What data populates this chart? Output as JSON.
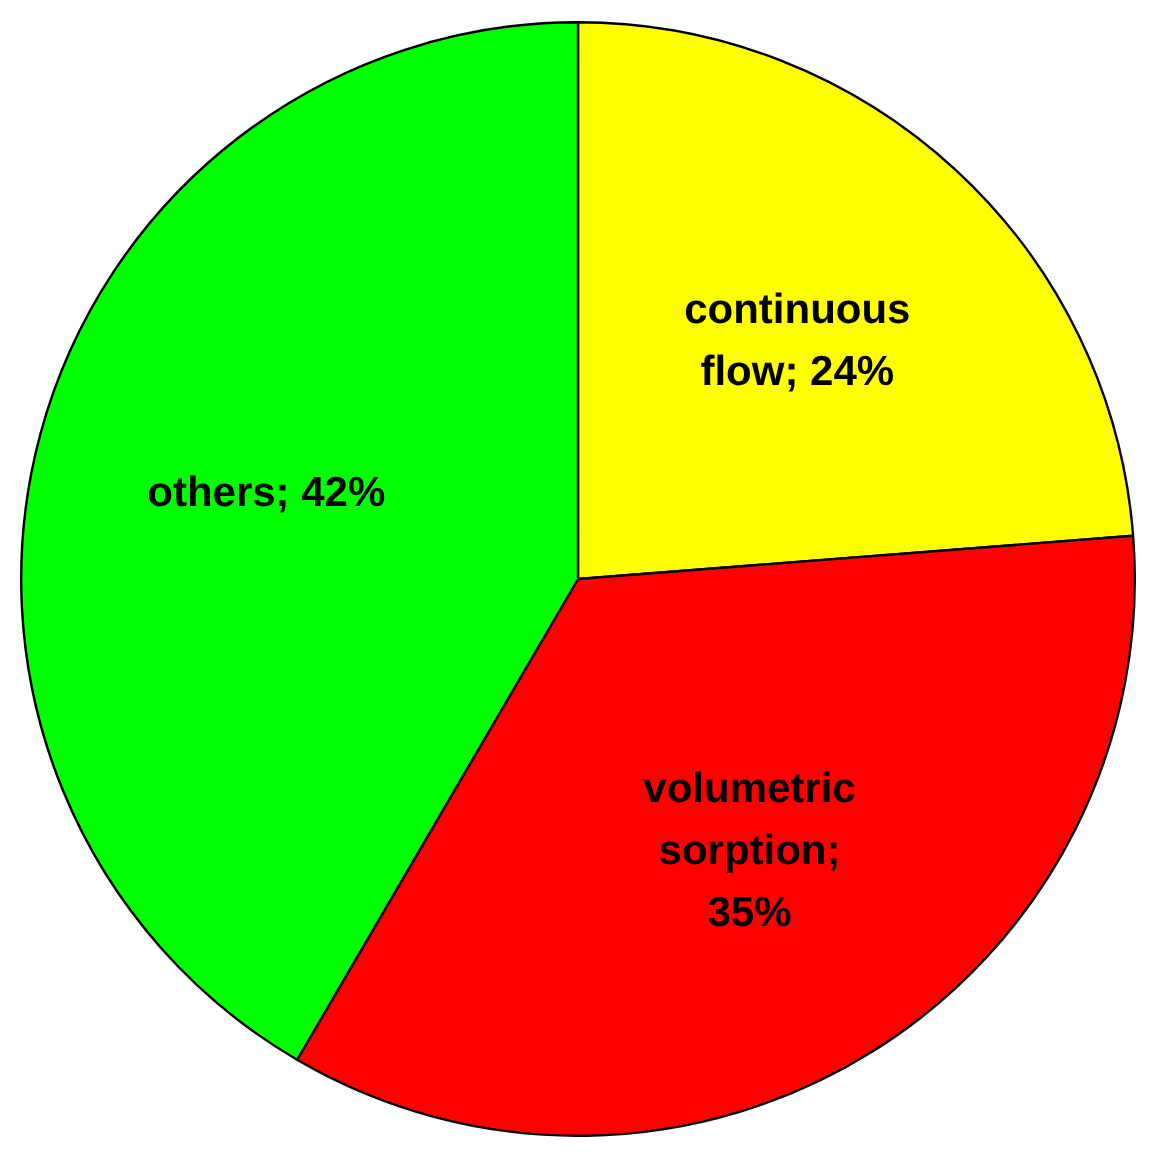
{
  "chart_data": {
    "type": "pie",
    "categories": [
      "continuous flow",
      "volumetric sorption",
      "others"
    ],
    "values": [
      24,
      35,
      42
    ],
    "colors": [
      "#ffff00",
      "#ff0000",
      "#00ff00"
    ],
    "value_labels": [
      "; 24%",
      "; 35%",
      "; 42%"
    ],
    "legend": false
  }
}
